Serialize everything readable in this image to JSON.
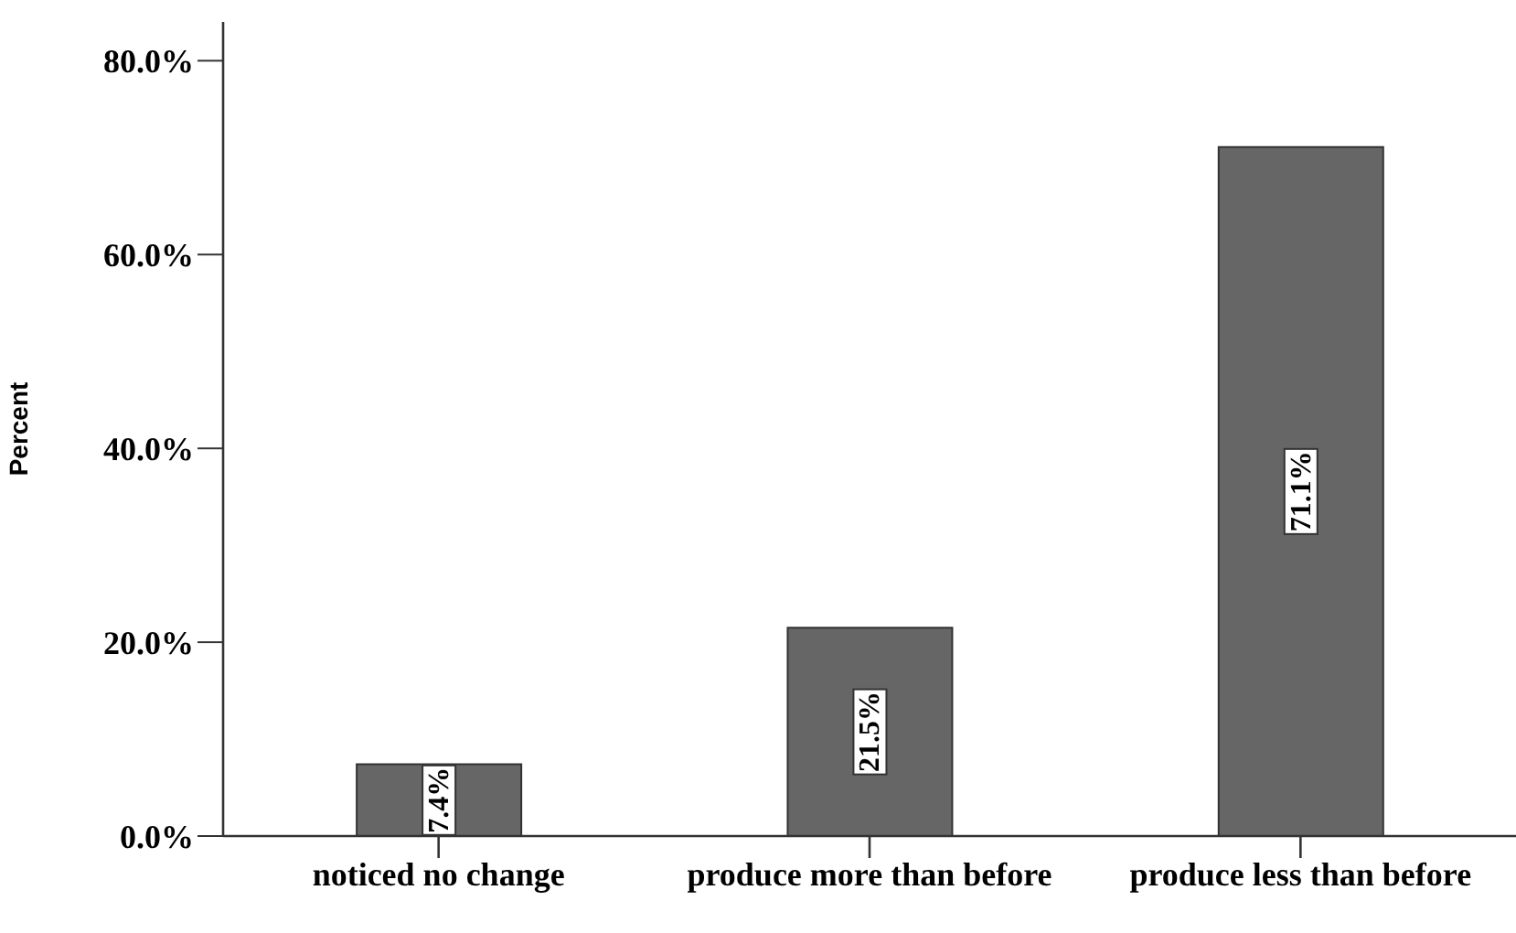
{
  "chart_data": {
    "type": "bar",
    "ylabel": "Percent",
    "categories": [
      "noticed no change",
      "produce more than before",
      "produce less than before"
    ],
    "values": [
      7.4,
      21.5,
      71.1
    ],
    "color": "#666666",
    "value_labels": [
      "7.4%",
      "21.5%",
      "71.1%"
    ],
    "ylim": [
      0,
      84
    ],
    "yticks": [
      {
        "value": 0,
        "label": "0.0%"
      },
      {
        "value": 20,
        "label": "20.0%"
      },
      {
        "value": 40,
        "label": "40.0%"
      },
      {
        "value": 60,
        "label": "60.0%"
      },
      {
        "value": 80,
        "label": "80.0%"
      }
    ],
    "grid": false,
    "legend": false
  }
}
